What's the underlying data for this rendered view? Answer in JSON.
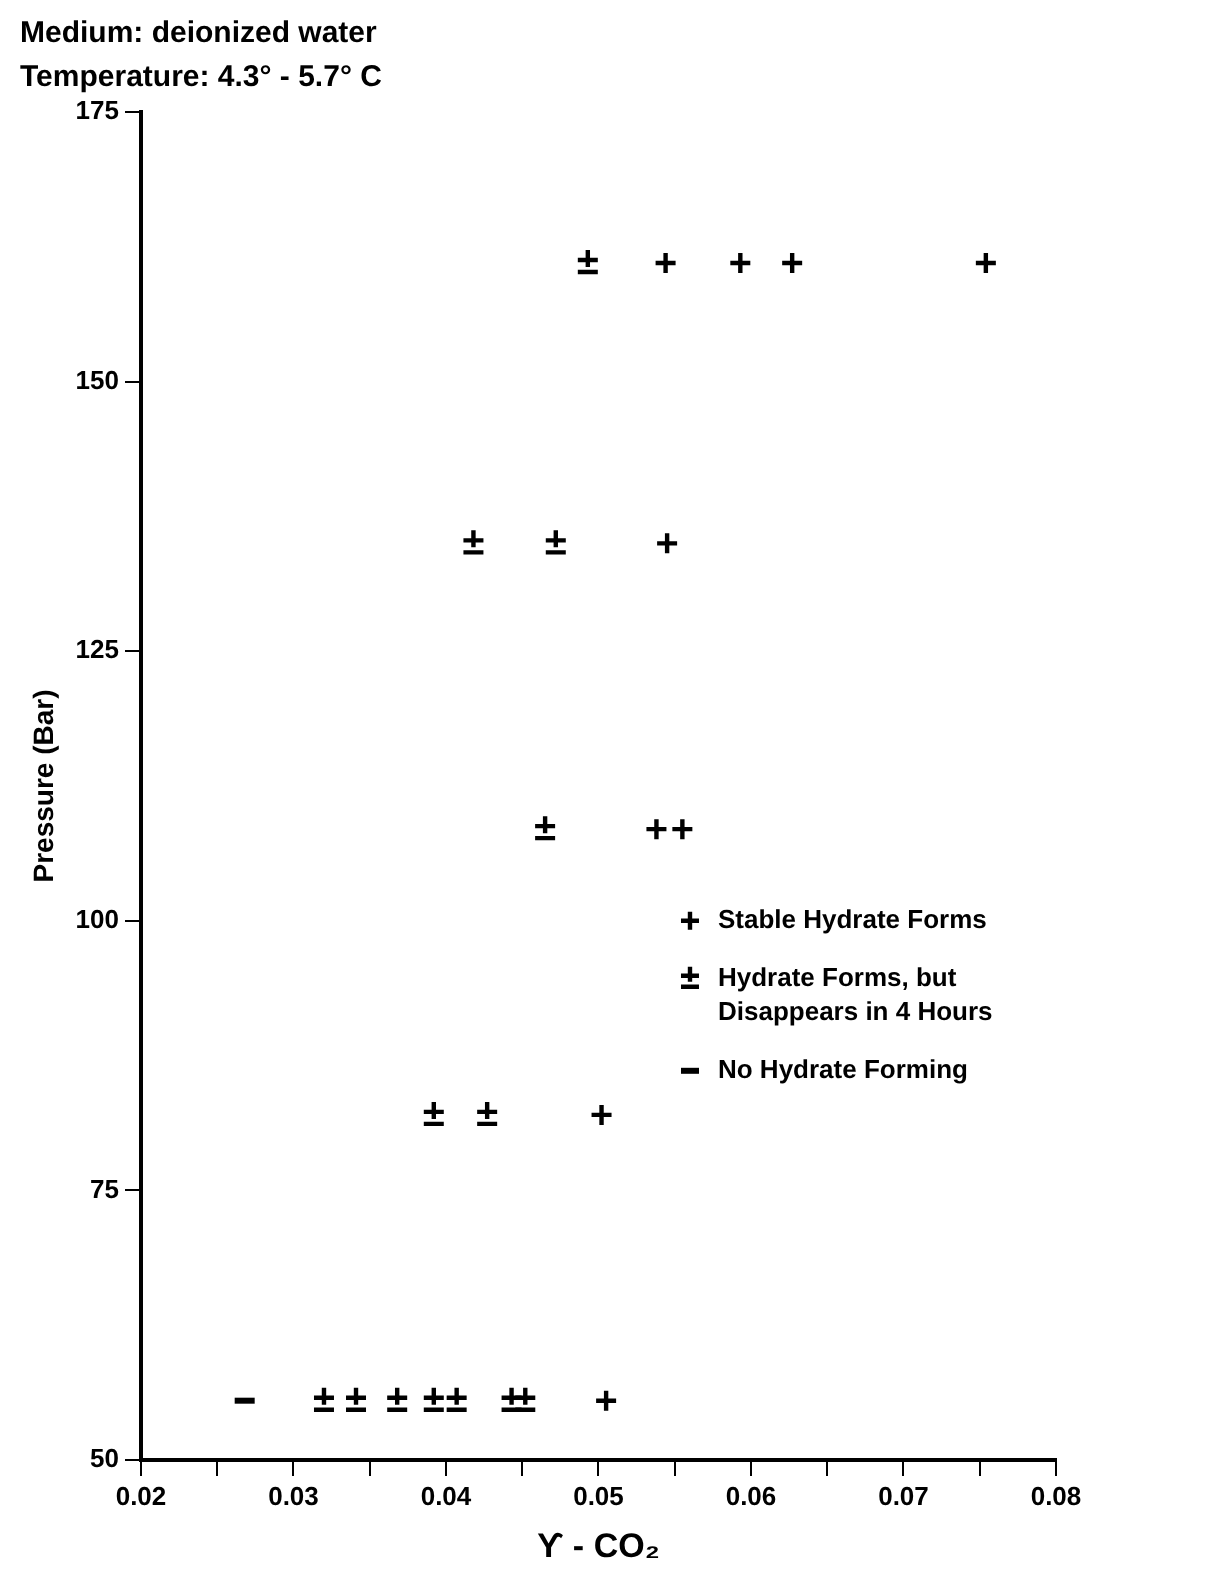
{
  "chart_data": {
    "type": "scatter",
    "title": "Medium: deionized water",
    "subtitle": "Temperature: 4.3° - 5.7° C",
    "xlabel": "ϒ - CO₂",
    "ylabel": "Pressure (Bar)",
    "xlim": [
      0.02,
      0.08
    ],
    "ylim": [
      50,
      175
    ],
    "xticks": [
      0.02,
      {
        "value": 0.025,
        "label": null
      },
      0.03,
      {
        "value": 0.035,
        "label": null
      },
      0.04,
      {
        "value": 0.045,
        "label": null
      },
      0.05,
      {
        "value": 0.055,
        "label": null
      },
      0.06,
      {
        "value": 0.065,
        "label": null
      },
      0.07,
      {
        "value": 0.075,
        "label": null
      },
      0.08
    ],
    "yticks": [
      50,
      75,
      100,
      125,
      150,
      175
    ],
    "grid": false,
    "legend": "right",
    "series": [
      {
        "name": "Stable Hydrate Forms",
        "color": "#000000",
        "marker": "cross",
        "x": [
          0.0544,
          0.0593,
          0.0627,
          0.0754,
          0.0545,
          0.0538,
          0.0555,
          0.0502,
          0.0505
        ],
        "values": [
          161,
          161,
          161,
          161,
          135,
          108.5,
          108.5,
          82,
          55.5
        ]
      },
      {
        "name": "Hydrate Forms, but Disappears in 4 Hours",
        "color": "#000000",
        "marker": "cross",
        "x": [
          0.0493,
          0.0418,
          0.0472,
          0.0465,
          0.0392,
          0.0427,
          0.032,
          0.0341,
          0.0368,
          0.0392,
          0.0407,
          0.0443,
          0.0452
        ],
        "values": [
          161,
          135,
          135,
          108.5,
          82,
          82,
          55.5,
          55.5,
          55.5,
          55.5,
          55.5,
          55.5,
          55.5
        ]
      },
      {
        "name": "No Hydrate Forming",
        "color": "#000000",
        "x": [
          0.0268
        ],
        "values": [
          55.5
        ]
      }
    ]
  }
}
